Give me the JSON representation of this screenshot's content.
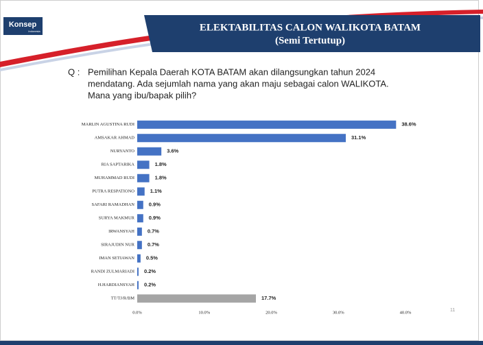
{
  "header": {
    "logo": "Konsep",
    "logo_sub": "Indonesia",
    "title": "ELEKTABILITAS CALON WALIKOTA BATAM",
    "subtitle": "(Semi Tertutup)"
  },
  "question": {
    "label": "Q :",
    "lines": [
      "Pemilihan Kepala Daerah KOTA BATAM akan dilangsungkan tahun 2024",
      "mendatang. Ada sejumlah nama yang akan maju sebagai calon WALIKOTA.",
      "Mana yang ibu/bapak pilih?"
    ]
  },
  "chart_data": {
    "type": "hbar",
    "categories": [
      "MARLIN AGUSTINA RUDI",
      "AMSAKAR AHMAD",
      "NURYANTO",
      "RIA SAPTARIKA",
      "MUHAMMAD RUDI",
      "PUTRA RESPATIONO",
      "SAFARI RAMADHAN",
      "SURYA MAKMUR",
      "IRWANSYAH",
      "SIRAJUDIN NUR",
      "IMAN SETIAWAN",
      "RANDI ZULMARIADI",
      "H.HARDIANSYAH",
      "TT/TJ/R/BM"
    ],
    "values": [
      38.6,
      31.1,
      3.6,
      1.8,
      1.8,
      1.1,
      0.9,
      0.9,
      0.7,
      0.7,
      0.5,
      0.2,
      0.2,
      17.7
    ],
    "value_labels": [
      "38.6%",
      "31.1%",
      "3.6%",
      "1.8%",
      "1.8%",
      "1.1%",
      "0.9%",
      "0.9%",
      "0.7%",
      "0.7%",
      "0.5%",
      "0.2%",
      "0.2%",
      "17.7%"
    ],
    "colors": [
      "#4472c4",
      "#4472c4",
      "#4472c4",
      "#4472c4",
      "#4472c4",
      "#4472c4",
      "#4472c4",
      "#4472c4",
      "#4472c4",
      "#4472c4",
      "#4472c4",
      "#4472c4",
      "#4472c4",
      "#a5a5a5"
    ],
    "xlim": [
      0,
      40
    ],
    "xticks": [
      {
        "value": 0,
        "label": "0.0%"
      },
      {
        "value": 10,
        "label": "10.0%"
      },
      {
        "value": 20,
        "label": "20.0%"
      },
      {
        "value": 30,
        "label": "30.0%"
      },
      {
        "value": 40,
        "label": "40.0%"
      }
    ],
    "grid": false
  },
  "page_number": "11"
}
